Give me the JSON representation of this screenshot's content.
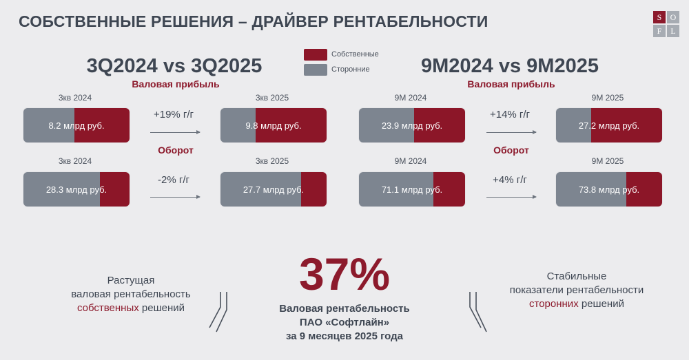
{
  "header": {
    "title": "СОБСТВЕННЫЕ РЕШЕНИЯ – ДРАЙВЕР РЕНТАБЕЛЬНОСТИ",
    "logo_letters": [
      "S",
      "O",
      "F",
      "L"
    ]
  },
  "legend": {
    "own": {
      "label": "Собственные",
      "color": "#8c1628"
    },
    "external": {
      "label": "Сторонние",
      "color": "#7d8590"
    }
  },
  "left_panel": {
    "title": "3Q2024 vs 3Q2025",
    "gross_profit_label": "Валовая прибыль",
    "revenue_label": "Оборот",
    "gross_profit": {
      "prev": {
        "period": "3кв 2024",
        "value": "8.2 млрд руб.",
        "own_share": 0.52
      },
      "curr": {
        "period": "3кв 2025",
        "value": "9.8 млрд руб.",
        "own_share": 0.67
      },
      "growth": "+19% г/г"
    },
    "revenue": {
      "prev": {
        "period": "3кв 2024",
        "value": "28.3 млрд руб.",
        "own_share": 0.28
      },
      "curr": {
        "period": "3кв 2025",
        "value": "27.7 млрд руб.",
        "own_share": 0.24
      },
      "growth": "-2% г/г"
    }
  },
  "right_panel": {
    "title": "9M2024 vs 9M2025",
    "gross_profit_label": "Валовая прибыль",
    "revenue_label": "Оборот",
    "gross_profit": {
      "prev": {
        "period": "9М 2024",
        "value": "23.9 млрд руб.",
        "own_share": 0.48
      },
      "curr": {
        "period": "9М 2025",
        "value": "27.2 млрд руб.",
        "own_share": 0.67
      },
      "growth": "+14% г/г"
    },
    "revenue": {
      "prev": {
        "period": "9М 2024",
        "value": "71.1 млрд руб.",
        "own_share": 0.3
      },
      "curr": {
        "period": "9М 2025",
        "value": "73.8 млрд руб.",
        "own_share": 0.34
      },
      "growth": "+4% г/г"
    }
  },
  "bottom": {
    "left_text": {
      "line1": "Растущая",
      "line2": "валовая рентабельность",
      "accent": "собственных",
      "tail": " решений"
    },
    "center": {
      "percent": "37%",
      "line1": "Валовая рентабельность",
      "line2": "ПАО «Софтлайн»",
      "line3": "за 9 месяцев 2025 года"
    },
    "right_text": {
      "line1": "Стабильные",
      "line2": "показатели рентабельности",
      "accent": "сторонних",
      "tail": " решений"
    }
  }
}
